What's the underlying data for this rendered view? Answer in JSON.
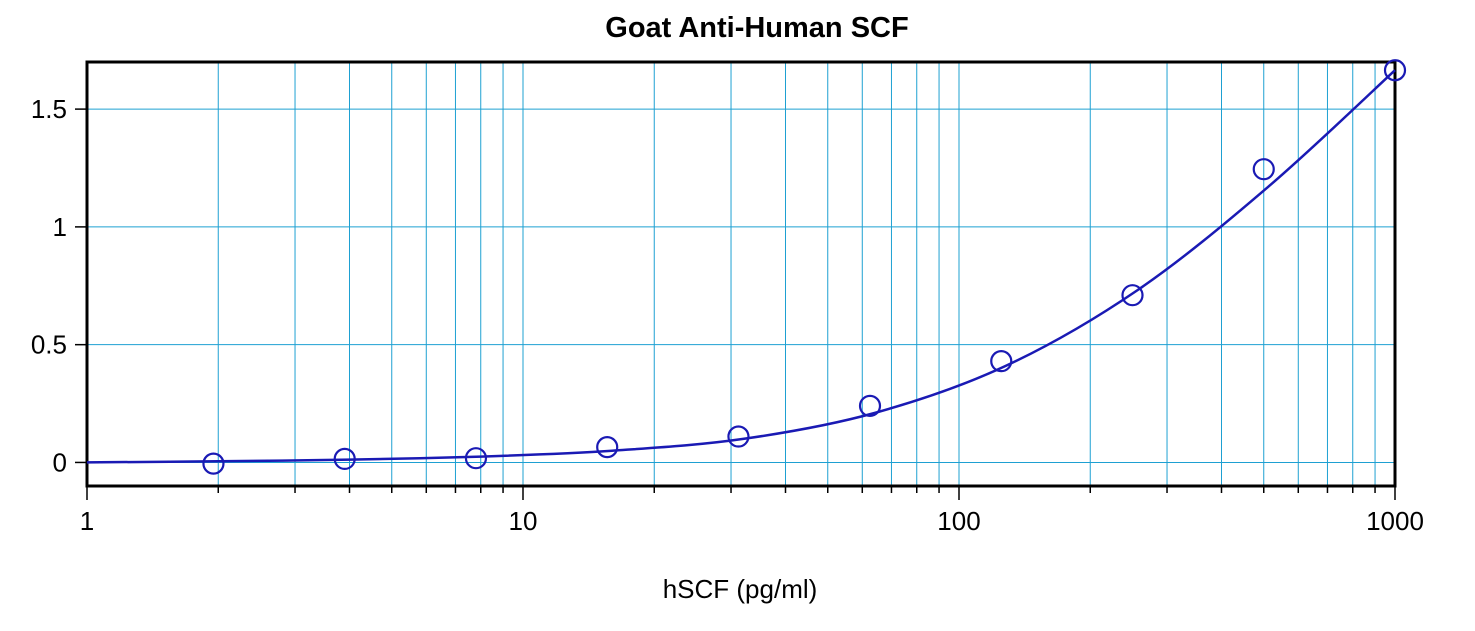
{
  "chart_data": {
    "type": "scatter",
    "title": "Goat Anti-Human SCF",
    "xlabel": "hSCF (pg/ml)",
    "ylabel": "",
    "x_scale": "log",
    "xlim": [
      1,
      1000
    ],
    "ylim": [
      -0.1,
      1.7
    ],
    "x_ticks": [
      1,
      10,
      100,
      1000
    ],
    "x_tick_labels": [
      "1",
      "10",
      "100",
      "1000"
    ],
    "y_ticks": [
      0,
      0.5,
      1,
      1.5
    ],
    "y_tick_labels": [
      "0",
      "0.5",
      "1",
      "1.5"
    ],
    "grid": true,
    "colors": {
      "grid": "#1ea0d2",
      "series": "#1a1ab4",
      "axes": "#000000"
    },
    "series": [
      {
        "marker": "open-circle",
        "x": [
          1.95,
          3.9,
          7.8,
          15.6,
          31.2,
          62.5,
          125,
          250,
          500,
          1000
        ],
        "y": [
          -0.005,
          0.015,
          0.018,
          0.065,
          0.11,
          0.24,
          0.43,
          0.71,
          1.245,
          1.665
        ]
      }
    ],
    "fit_curve": {
      "x": [
        1,
        2,
        4,
        8,
        16,
        32,
        64,
        128,
        256,
        512,
        1000
      ],
      "y": [
        0.0,
        0.005,
        0.012,
        0.025,
        0.05,
        0.1,
        0.21,
        0.41,
        0.73,
        1.17,
        1.665
      ]
    }
  }
}
